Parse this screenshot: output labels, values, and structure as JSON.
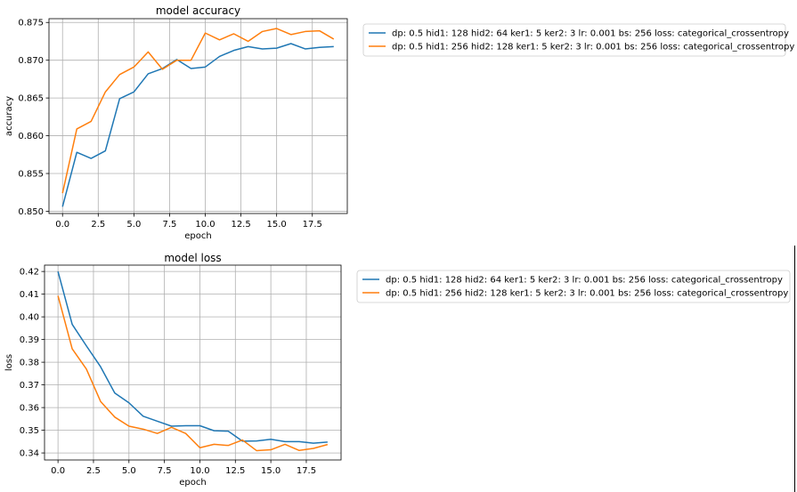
{
  "chart_data": [
    {
      "type": "line",
      "title": "model accuracy",
      "xlabel": "epoch",
      "ylabel": "accuracy",
      "xlim": [
        -0.95,
        19.95
      ],
      "ylim": [
        0.8497,
        0.8755
      ],
      "xticks": [
        "0.0",
        "2.5",
        "5.0",
        "7.5",
        "10.0",
        "12.5",
        "15.0",
        "17.5"
      ],
      "xtick_values": [
        0,
        2.5,
        5,
        7.5,
        10,
        12.5,
        15,
        17.5
      ],
      "yticks": [
        "0.850",
        "0.855",
        "0.860",
        "0.865",
        "0.870",
        "0.875"
      ],
      "ytick_values": [
        0.85,
        0.855,
        0.86,
        0.865,
        0.87,
        0.875
      ],
      "grid": true,
      "legend": "outside-right-top",
      "x": [
        0,
        1,
        2,
        3,
        4,
        5,
        6,
        7,
        8,
        9,
        10,
        11,
        12,
        13,
        14,
        15,
        16,
        17,
        18,
        19
      ],
      "series": [
        {
          "name": "dp: 0.5 hid1: 128 hid2: 64 ker1: 5 ker2: 3 lr: 0.001 bs: 256 loss: categorical_crossentropy",
          "color": "#1f77b4",
          "values": [
            0.8506,
            0.8578,
            0.857,
            0.858,
            0.8649,
            0.8658,
            0.8682,
            0.8689,
            0.8701,
            0.8689,
            0.8691,
            0.8705,
            0.8713,
            0.8718,
            0.8715,
            0.8716,
            0.8722,
            0.8715,
            0.8717,
            0.8718
          ]
        },
        {
          "name": "dp: 0.5 hid1: 256 hid2: 128 ker1: 5 ker2: 3 lr: 0.001 bs: 256 loss: categorical_crossentropy",
          "color": "#ff7f0e",
          "values": [
            0.8524,
            0.8609,
            0.8619,
            0.8658,
            0.8681,
            0.8691,
            0.8711,
            0.8688,
            0.87,
            0.87,
            0.8736,
            0.8727,
            0.8735,
            0.8725,
            0.8738,
            0.8742,
            0.8734,
            0.8738,
            0.8739,
            0.8728
          ]
        }
      ]
    },
    {
      "type": "line",
      "title": "model loss",
      "xlabel": "epoch",
      "ylabel": "loss",
      "xlim": [
        -0.95,
        19.95
      ],
      "ylim": [
        0.3369,
        0.4228
      ],
      "xticks": [
        "0.0",
        "2.5",
        "5.0",
        "7.5",
        "10.0",
        "12.5",
        "15.0",
        "17.5"
      ],
      "xtick_values": [
        0,
        2.5,
        5,
        7.5,
        10,
        12.5,
        15,
        17.5
      ],
      "yticks": [
        "0.34",
        "0.35",
        "0.36",
        "0.37",
        "0.38",
        "0.39",
        "0.40",
        "0.41",
        "0.42"
      ],
      "ytick_values": [
        0.34,
        0.35,
        0.36,
        0.37,
        0.38,
        0.39,
        0.4,
        0.41,
        0.42
      ],
      "grid": true,
      "legend": "outside-right-top",
      "x": [
        0,
        1,
        2,
        3,
        4,
        5,
        6,
        7,
        8,
        9,
        10,
        11,
        12,
        13,
        14,
        15,
        16,
        17,
        18,
        19
      ],
      "series": [
        {
          "name": "dp: 0.5 hid1: 128 hid2: 64 ker1: 5 ker2: 3 lr: 0.001 bs: 256 loss: categorical_crossentropy",
          "color": "#1f77b4",
          "values": [
            0.42,
            0.3967,
            0.3872,
            0.378,
            0.3664,
            0.3621,
            0.3562,
            0.354,
            0.3518,
            0.352,
            0.352,
            0.3498,
            0.3496,
            0.3452,
            0.3453,
            0.346,
            0.345,
            0.345,
            0.3443,
            0.3448
          ]
        },
        {
          "name": "dp: 0.5 hid1: 256 hid2: 128 ker1: 5 ker2: 3 lr: 0.001 bs: 256 loss: categorical_crossentropy",
          "color": "#ff7f0e",
          "values": [
            0.4093,
            0.3859,
            0.377,
            0.3627,
            0.3558,
            0.3518,
            0.3505,
            0.3486,
            0.3513,
            0.3486,
            0.3423,
            0.3438,
            0.3433,
            0.3457,
            0.341,
            0.3414,
            0.3438,
            0.3411,
            0.342,
            0.3437
          ]
        }
      ]
    }
  ]
}
